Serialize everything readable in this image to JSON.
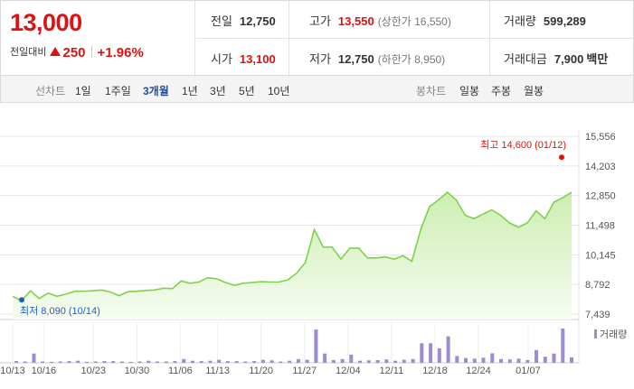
{
  "summary": {
    "price": "13,000",
    "change_label": "전일대비",
    "change_value": "250",
    "change_pct": "+1.96%"
  },
  "stats": {
    "prev_close": {
      "label": "전일",
      "value": "12,750"
    },
    "open": {
      "label": "시가",
      "value": "13,100"
    },
    "high": {
      "label": "고가",
      "value": "13,550",
      "limit": "(상한가 16,550)"
    },
    "low": {
      "label": "저가",
      "value": "12,750",
      "limit": "(하한가 8,950)"
    },
    "volume": {
      "label": "거래량",
      "value": "599,289"
    },
    "turnover": {
      "label": "거래대금",
      "value": "7,900",
      "unit": "백만"
    }
  },
  "periods": {
    "line_label": "선차트",
    "line_options": [
      "1일",
      "1주일",
      "3개월",
      "1년",
      "3년",
      "5년",
      "10년"
    ],
    "selected": "3개월",
    "candle_label": "봉차트",
    "candle_options": [
      "일봉",
      "주봉",
      "월봉"
    ]
  },
  "colors": {
    "rise": "#e01111",
    "line": "#7fd14d",
    "area_top": "#cdeeb2",
    "volume": "#9d8bd3",
    "low_marker": "#1f5fc4"
  },
  "chart_data": [
    {
      "type": "area",
      "x_ticks": [
        "10/13",
        "10/16",
        "10/23",
        "10/30",
        "11/06",
        "11/13",
        "11/20",
        "11/27",
        "12/04",
        "12/11",
        "12/18",
        "12/24",
        "01/07"
      ],
      "y_ticks": [
        7439,
        8792,
        10145,
        11498,
        12850,
        14203,
        15556
      ],
      "y_tick_labels": [
        "7,439",
        "8,792",
        "10,145",
        "11,498",
        "12,850",
        "14,203",
        "15,556"
      ],
      "ylim": [
        7439,
        15556
      ],
      "grid": true,
      "values": [
        8250,
        8050,
        8500,
        8150,
        8400,
        8250,
        8350,
        8480,
        8480,
        8500,
        8540,
        8450,
        8280,
        8460,
        8480,
        8520,
        8540,
        8620,
        8600,
        8950,
        8850,
        8900,
        9100,
        9050,
        8880,
        8750,
        8850,
        8880,
        8920,
        8900,
        8900,
        9000,
        9300,
        9800,
        11300,
        10500,
        10500,
        9950,
        10450,
        10450,
        10000,
        10000,
        10050,
        9950,
        10100,
        9850,
        11300,
        12350,
        12650,
        13000,
        12650,
        11950,
        11800,
        12000,
        12200,
        11950,
        11600,
        11400,
        11600,
        12150,
        11800,
        12550,
        12750,
        13000
      ],
      "high_annotation": {
        "label": "최고",
        "value": "14,600",
        "date": "(01/12)",
        "y": 14600
      },
      "low_annotation": {
        "label": "최저",
        "value": "8,090",
        "date": "(10/14)",
        "y": 8090
      }
    },
    {
      "type": "bar",
      "legend": "거래량",
      "values": [
        0.05,
        0.04,
        0.27,
        0.04,
        0.03,
        0.04,
        0.05,
        0.06,
        0.03,
        0.04,
        0.05,
        0.05,
        0.04,
        0.03,
        0.04,
        0.06,
        0.04,
        0.04,
        0.05,
        0.11,
        0.06,
        0.05,
        0.06,
        0.09,
        0.05,
        0.05,
        0.04,
        0.05,
        0.09,
        0.07,
        0.04,
        0.06,
        0.11,
        0.09,
        0.97,
        0.27,
        0.08,
        0.11,
        0.24,
        0.06,
        0.07,
        0.08,
        0.1,
        0.06,
        0.09,
        0.11,
        0.57,
        0.57,
        0.42,
        0.77,
        0.2,
        0.14,
        0.12,
        0.15,
        0.28,
        0.11,
        0.1,
        0.12,
        0.08,
        0.37,
        0.18,
        0.27,
        1.0,
        0.16
      ]
    }
  ]
}
